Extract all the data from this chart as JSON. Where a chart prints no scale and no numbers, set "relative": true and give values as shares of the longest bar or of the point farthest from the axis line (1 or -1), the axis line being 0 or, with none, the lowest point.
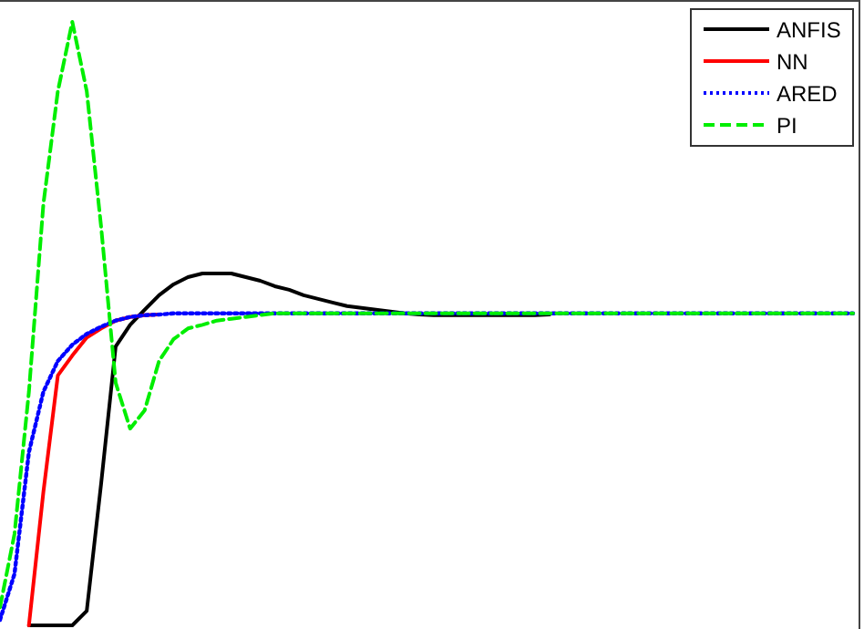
{
  "chart_data": {
    "type": "line",
    "relative": true,
    "legend": "top right",
    "categories": [
      null,
      null,
      null,
      null,
      null,
      null,
      null,
      null,
      null,
      null,
      null,
      null,
      null,
      null,
      null,
      null,
      null,
      null,
      null,
      null,
      null,
      null,
      null,
      null,
      null,
      null,
      null,
      null,
      null,
      null,
      null,
      null,
      null,
      null,
      null,
      null,
      null,
      null,
      null,
      null,
      null,
      null,
      null,
      null,
      null,
      null,
      null,
      null,
      null,
      null,
      null,
      null,
      null,
      null,
      null,
      null,
      null,
      null,
      null,
      null
    ],
    "series": [
      {
        "name": "ANFIS",
        "color": "#000000",
        "line_style": "solid",
        "values": [
          null,
          null,
          0,
          0,
          0,
          0,
          0.024,
          0.236,
          0.462,
          0.498,
          0.523,
          0.547,
          0.565,
          0.577,
          0.583,
          0.583,
          0.583,
          0.577,
          0.571,
          0.562,
          0.556,
          0.547,
          0.541,
          0.535,
          0.529,
          0.526,
          0.523,
          0.52,
          0.517,
          0.515,
          0.514,
          0.514,
          0.514,
          0.514,
          0.514,
          0.514,
          0.514,
          0.514,
          0.515,
          null,
          null,
          null,
          null,
          null,
          null,
          null,
          null,
          null,
          null,
          null,
          null,
          null,
          null,
          null,
          null,
          null,
          null,
          null,
          null,
          null
        ]
      },
      {
        "name": "NN",
        "color": "#ff0000",
        "line_style": "solid",
        "values": [
          null,
          null,
          0,
          0.221,
          0.414,
          0.447,
          0.477,
          0.492,
          0.505,
          0.511,
          0.514,
          0.515,
          null,
          null,
          null,
          null,
          null,
          null,
          null,
          null,
          null,
          null,
          null,
          null,
          null,
          null,
          null,
          null,
          null,
          null,
          null,
          null,
          null,
          null,
          null,
          null,
          null,
          null,
          null,
          null,
          null,
          null,
          null,
          null,
          null,
          null,
          null,
          null,
          null,
          null,
          null,
          null,
          null,
          null,
          null,
          null,
          null,
          null,
          null,
          null
        ]
      },
      {
        "name": "ARED",
        "color": "#0000ff",
        "line_style": "dotted",
        "values": [
          0.009,
          0.085,
          0.287,
          0.387,
          0.438,
          0.465,
          0.483,
          0.495,
          0.505,
          0.511,
          0.514,
          0.515,
          0.517,
          0.517,
          0.517,
          0.517,
          0.517,
          0.517,
          0.517,
          0.517,
          0.517,
          0.517,
          0.517,
          0.517,
          0.517,
          0.517,
          0.517,
          0.517,
          0.517,
          0.517,
          0.517,
          0.517,
          0.517,
          0.517,
          0.517,
          0.517,
          0.517,
          0.517,
          0.517,
          0.517,
          0.517,
          0.517,
          0.517,
          0.517,
          0.517,
          0.517,
          0.517,
          0.517,
          0.517,
          0.517,
          0.517,
          0.517,
          0.517,
          0.517,
          0.517,
          0.517,
          0.517,
          0.517,
          0.517,
          0.517
        ]
      },
      {
        "name": "PI",
        "color": "#00ee00",
        "line_style": "dashed",
        "values": [
          0.03,
          0.151,
          0.387,
          0.698,
          0.885,
          1,
          0.885,
          0.659,
          0.402,
          0.326,
          0.356,
          0.438,
          0.474,
          0.492,
          0.498,
          0.505,
          0.508,
          0.511,
          0.514,
          0.517,
          0.517,
          0.517,
          0.517,
          0.517,
          0.517,
          0.517,
          0.517,
          0.517,
          0.517,
          0.517,
          0.517,
          0.517,
          0.517,
          0.517,
          0.517,
          0.517,
          0.517,
          0.517,
          0.517,
          0.517,
          0.517,
          0.517,
          0.517,
          0.517,
          0.517,
          0.517,
          0.517,
          0.517,
          0.517,
          0.517,
          0.517,
          0.517,
          0.517,
          0.517,
          0.517,
          0.517,
          0.517,
          0.517,
          0.517,
          0.517
        ]
      }
    ]
  }
}
